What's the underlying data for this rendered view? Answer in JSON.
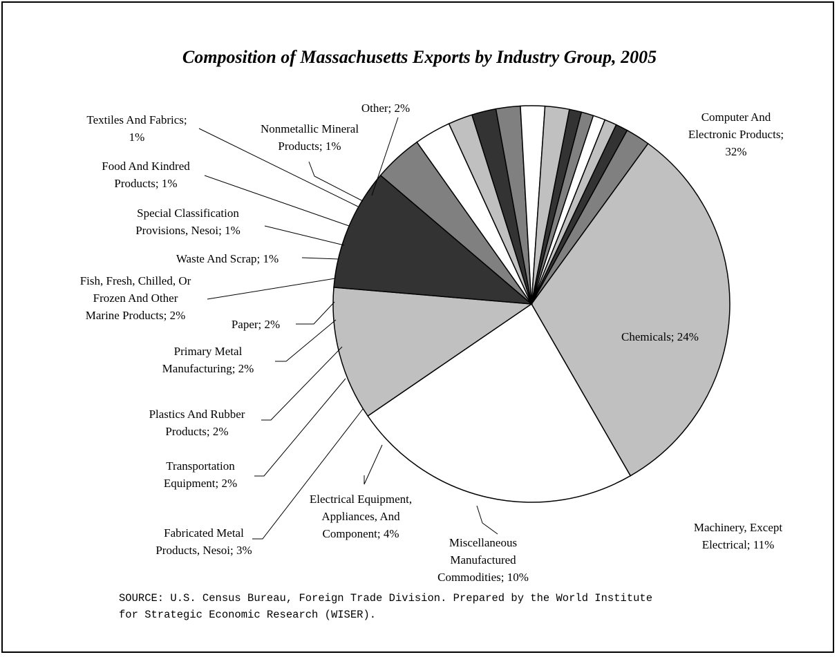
{
  "chart_data": {
    "type": "pie",
    "title": "Composition of Massachusetts Exports by Industry Group, 2005",
    "slices": [
      {
        "label_lines": [
          "Computer And",
          "Electronic Products;",
          "32%"
        ],
        "value": 32,
        "color": "#c0c0c0"
      },
      {
        "label_lines": [
          "Chemicals; 24%"
        ],
        "value": 24,
        "color": "#ffffff"
      },
      {
        "label_lines": [
          "Machinery, Except",
          "Electrical; 11%"
        ],
        "value": 11,
        "color": "#c0c0c0"
      },
      {
        "label_lines": [
          "Miscellaneous",
          "Manufactured",
          "Commodities; 10%"
        ],
        "value": 10,
        "color": "#333333"
      },
      {
        "label_lines": [
          "Electrical Equipment,",
          "Appliances, And",
          "Component; 4%"
        ],
        "value": 4,
        "color": "#808080"
      },
      {
        "label_lines": [
          "Fabricated Metal",
          "Products, Nesoi; 3%"
        ],
        "value": 3,
        "color": "#ffffff"
      },
      {
        "label_lines": [
          "Transportation",
          "Equipment; 2%"
        ],
        "value": 2,
        "color": "#c0c0c0"
      },
      {
        "label_lines": [
          "Plastics And Rubber",
          "Products; 2%"
        ],
        "value": 2,
        "color": "#333333"
      },
      {
        "label_lines": [
          "Primary Metal",
          "Manufacturing; 2%"
        ],
        "value": 2,
        "color": "#808080"
      },
      {
        "label_lines": [
          "Paper; 2%"
        ],
        "value": 2,
        "color": "#ffffff"
      },
      {
        "label_lines": [
          "Fish, Fresh, Chilled, Or",
          "Frozen And Other",
          "Marine Products; 2%"
        ],
        "value": 2,
        "color": "#c0c0c0"
      },
      {
        "label_lines": [
          "Waste And Scrap; 1%"
        ],
        "value": 1,
        "color": "#333333"
      },
      {
        "label_lines": [
          "Special Classification",
          "Provisions, Nesoi; 1%"
        ],
        "value": 1,
        "color": "#808080"
      },
      {
        "label_lines": [
          "Food And Kindred",
          "Products; 1%"
        ],
        "value": 1,
        "color": "#ffffff"
      },
      {
        "label_lines": [
          "Textiles And Fabrics;",
          "1%"
        ],
        "value": 1,
        "color": "#c0c0c0"
      },
      {
        "label_lines": [
          "Nonmetallic Mineral",
          "Products; 1%"
        ],
        "value": 1,
        "color": "#333333"
      },
      {
        "label_lines": [
          "Other; 2%"
        ],
        "value": 2,
        "color": "#808080"
      }
    ]
  },
  "source_lines": [
    "SOURCE:  U.S. Census Bureau, Foreign Trade Division.  Prepared by the World Institute",
    "for Strategic Economic Research (WISER)."
  ]
}
